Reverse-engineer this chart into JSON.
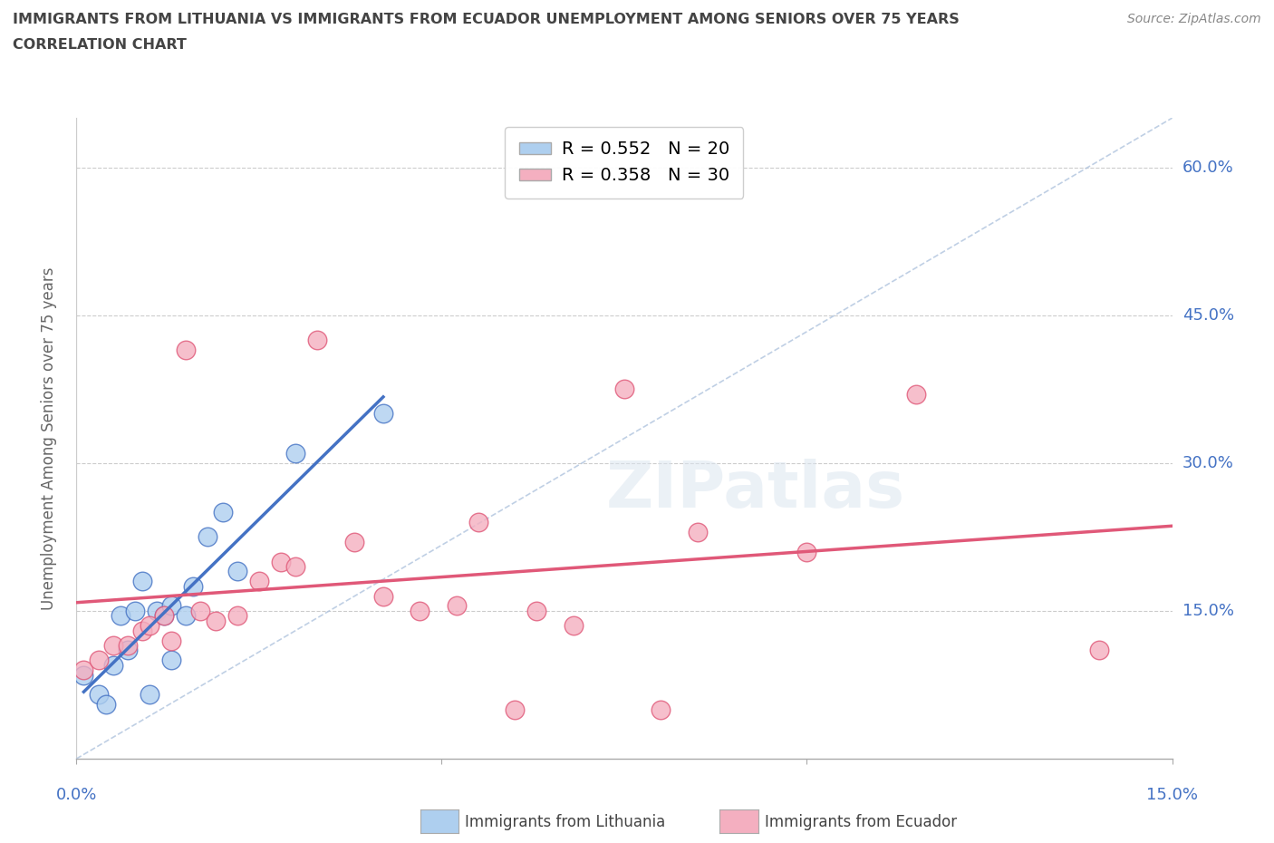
{
  "title_line1": "IMMIGRANTS FROM LITHUANIA VS IMMIGRANTS FROM ECUADOR UNEMPLOYMENT AMONG SENIORS OVER 75 YEARS",
  "title_line2": "CORRELATION CHART",
  "source": "Source: ZipAtlas.com",
  "ylabel": "Unemployment Among Seniors over 75 years",
  "xlim": [
    0,
    0.15
  ],
  "ylim": [
    0,
    0.65
  ],
  "xticks": [
    0.0,
    0.05,
    0.1,
    0.15
  ],
  "xtick_labels_outer": [
    "0.0%",
    "15.0%"
  ],
  "ytick_labels": [
    "15.0%",
    "30.0%",
    "45.0%",
    "60.0%"
  ],
  "yticks": [
    0.15,
    0.3,
    0.45,
    0.6
  ],
  "legend_R1": "R = 0.552",
  "legend_N1": "N = 20",
  "legend_R2": "R = 0.358",
  "legend_N2": "N = 30",
  "color_lithuania": "#aecfef",
  "color_ecuador": "#f4afc0",
  "color_reg_lithuania": "#4472c4",
  "color_reg_ecuador": "#e05878",
  "color_diagonal": "#b0c4de",
  "watermark_text": "ZIPatlas",
  "legend_bottom_lith": "Immigrants from Lithuania",
  "legend_bottom_ecu": "Immigrants from Ecuador",
  "lithuania_x": [
    0.001,
    0.003,
    0.004,
    0.005,
    0.006,
    0.007,
    0.008,
    0.009,
    0.01,
    0.011,
    0.012,
    0.013,
    0.013,
    0.015,
    0.016,
    0.018,
    0.02,
    0.022,
    0.03,
    0.042
  ],
  "lithuania_y": [
    0.085,
    0.065,
    0.055,
    0.095,
    0.145,
    0.11,
    0.15,
    0.18,
    0.065,
    0.15,
    0.145,
    0.1,
    0.155,
    0.145,
    0.175,
    0.225,
    0.25,
    0.19,
    0.31,
    0.35
  ],
  "ecuador_x": [
    0.001,
    0.003,
    0.005,
    0.007,
    0.009,
    0.01,
    0.012,
    0.013,
    0.015,
    0.017,
    0.019,
    0.022,
    0.025,
    0.028,
    0.03,
    0.033,
    0.038,
    0.042,
    0.047,
    0.052,
    0.055,
    0.06,
    0.063,
    0.068,
    0.075,
    0.08,
    0.085,
    0.1,
    0.115,
    0.14
  ],
  "ecuador_y": [
    0.09,
    0.1,
    0.115,
    0.115,
    0.13,
    0.135,
    0.145,
    0.12,
    0.415,
    0.15,
    0.14,
    0.145,
    0.18,
    0.2,
    0.195,
    0.425,
    0.22,
    0.165,
    0.15,
    0.155,
    0.24,
    0.05,
    0.15,
    0.135,
    0.375,
    0.05,
    0.23,
    0.21,
    0.37,
    0.11
  ]
}
